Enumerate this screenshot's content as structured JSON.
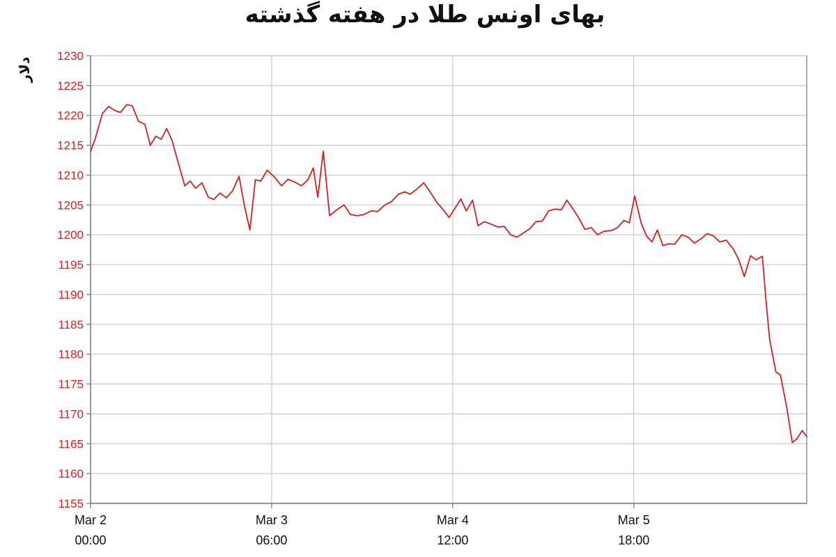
{
  "chart_data": {
    "type": "line",
    "title": "بهای اونس طلا در هفته گذشته",
    "ylabel": "دلار",
    "xlabel": "",
    "ylim": [
      1155,
      1230
    ],
    "yticks": [
      1155,
      1160,
      1165,
      1170,
      1175,
      1180,
      1185,
      1190,
      1195,
      1200,
      1205,
      1210,
      1215,
      1220,
      1225,
      1230
    ],
    "xlim": [
      0,
      78
    ],
    "xticks": [
      {
        "x": 0,
        "line1": "Mar 2",
        "line2": "00:00"
      },
      {
        "x": 20,
        "line1": "Mar 3",
        "line2": "06:00"
      },
      {
        "x": 40,
        "line1": "Mar 4",
        "line2": "12:00"
      },
      {
        "x": 60,
        "line1": "Mar 5",
        "line2": "18:00"
      }
    ],
    "grid": true,
    "colors": {
      "line": "#d21f1f",
      "grid": "#c8c8c8",
      "axis": "#777777",
      "tick_text": "#d21f1f"
    },
    "series": [
      {
        "values": [
          [
            0,
            1214
          ],
          [
            0.5,
            1216
          ],
          [
            1.3,
            1220.3
          ],
          [
            2,
            1221.5
          ],
          [
            2.7,
            1220.8
          ],
          [
            3.3,
            1220.5
          ],
          [
            4,
            1221.8
          ],
          [
            4.6,
            1221.6
          ],
          [
            5.3,
            1219
          ],
          [
            6,
            1218.5
          ],
          [
            6.6,
            1215
          ],
          [
            7.2,
            1216.5
          ],
          [
            7.8,
            1216
          ],
          [
            8.4,
            1217.8
          ],
          [
            9,
            1215.8
          ],
          [
            9.6,
            1212.5
          ],
          [
            10.4,
            1208.2
          ],
          [
            11,
            1209
          ],
          [
            11.6,
            1207.8
          ],
          [
            12.3,
            1208.7
          ],
          [
            13,
            1206.3
          ],
          [
            13.6,
            1205.9
          ],
          [
            14.3,
            1207
          ],
          [
            15,
            1206.2
          ],
          [
            15.7,
            1207.4
          ],
          [
            16.4,
            1209.8
          ],
          [
            17,
            1204.8
          ],
          [
            17.6,
            1200.8
          ],
          [
            18.2,
            1209.2
          ],
          [
            18.8,
            1209
          ],
          [
            19.5,
            1210.8
          ],
          [
            20.3,
            1209.7
          ],
          [
            21.1,
            1208.2
          ],
          [
            21.8,
            1209.3
          ],
          [
            22.6,
            1208.8
          ],
          [
            23.3,
            1208.2
          ],
          [
            24,
            1209.2
          ],
          [
            24.6,
            1211.2
          ],
          [
            25.1,
            1206.3
          ],
          [
            25.7,
            1214
          ],
          [
            26.4,
            1203.2
          ],
          [
            27.2,
            1204.2
          ],
          [
            28,
            1205
          ],
          [
            28.7,
            1203.4
          ],
          [
            29.5,
            1203.2
          ],
          [
            30.2,
            1203.4
          ],
          [
            31,
            1204
          ],
          [
            31.7,
            1203.9
          ],
          [
            32.5,
            1205
          ],
          [
            33.2,
            1205.5
          ],
          [
            34,
            1206.8
          ],
          [
            34.7,
            1207.2
          ],
          [
            35.3,
            1206.8
          ],
          [
            36,
            1207.6
          ],
          [
            36.8,
            1208.7
          ],
          [
            37.5,
            1207.2
          ],
          [
            38.2,
            1205.5
          ],
          [
            38.9,
            1204.3
          ],
          [
            39.6,
            1202.9
          ],
          [
            40.4,
            1204.8
          ],
          [
            40.9,
            1206
          ],
          [
            41.5,
            1204
          ],
          [
            42.2,
            1205.8
          ],
          [
            42.8,
            1201.5
          ],
          [
            43.5,
            1202.2
          ],
          [
            44.2,
            1201.8
          ],
          [
            45,
            1201.3
          ],
          [
            45.7,
            1201.4
          ],
          [
            46.4,
            1200
          ],
          [
            47.1,
            1199.6
          ],
          [
            47.8,
            1200.3
          ],
          [
            48.5,
            1201
          ],
          [
            49.2,
            1202.2
          ],
          [
            49.9,
            1202.3
          ],
          [
            50.6,
            1204
          ],
          [
            51.3,
            1204.3
          ],
          [
            52,
            1204.2
          ],
          [
            52.6,
            1205.8
          ],
          [
            53.3,
            1204.3
          ],
          [
            54,
            1202.6
          ],
          [
            54.6,
            1200.9
          ],
          [
            55.3,
            1201.2
          ],
          [
            56,
            1200
          ],
          [
            56.7,
            1200.6
          ],
          [
            57.5,
            1200.7
          ],
          [
            58.2,
            1201.2
          ],
          [
            58.9,
            1202.4
          ],
          [
            59.5,
            1202
          ],
          [
            60.1,
            1206.5
          ],
          [
            60.8,
            1202
          ],
          [
            61.4,
            1199.8
          ],
          [
            62,
            1198.8
          ],
          [
            62.6,
            1200.8
          ],
          [
            63.2,
            1198.2
          ],
          [
            63.9,
            1198.5
          ],
          [
            64.5,
            1198.4
          ],
          [
            65.3,
            1200
          ],
          [
            66,
            1199.6
          ],
          [
            66.7,
            1198.6
          ],
          [
            67.5,
            1199.4
          ],
          [
            68.1,
            1200.2
          ],
          [
            68.8,
            1199.8
          ],
          [
            69.5,
            1198.8
          ],
          [
            70.2,
            1199.1
          ],
          [
            71,
            1197.6
          ],
          [
            71.6,
            1195.8
          ],
          [
            72.2,
            1193
          ],
          [
            72.9,
            1196.5
          ],
          [
            73.5,
            1195.8
          ],
          [
            74.2,
            1196.4
          ],
          [
            74.6,
            1189
          ],
          [
            75,
            1182.5
          ],
          [
            75.7,
            1177
          ],
          [
            76.2,
            1176.5
          ],
          [
            76.9,
            1171
          ],
          [
            77.5,
            1165.2
          ],
          [
            78,
            1165.8
          ],
          [
            78.6,
            1167.2
          ],
          [
            79.1,
            1166.2
          ]
        ]
      }
    ]
  }
}
